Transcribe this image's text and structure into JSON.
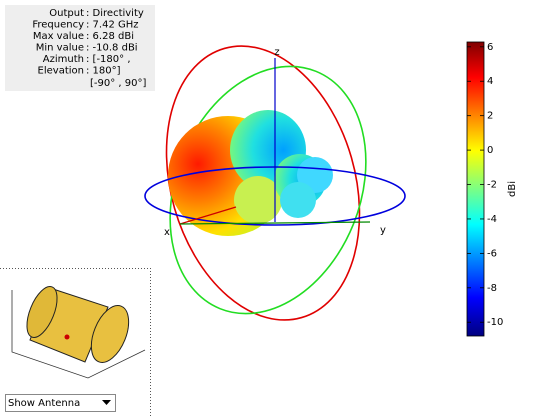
{
  "info": {
    "rows": [
      {
        "label": "Output",
        "value": ": Directivity"
      },
      {
        "label": "Frequency",
        "value": ": 7.42 GHz"
      },
      {
        "label": "Max value",
        "value": ": 6.28 dBi"
      },
      {
        "label": "Min value",
        "value": ": -10.8 dBi"
      },
      {
        "label": "Azimuth",
        "value": ": [-180° ,"
      },
      {
        "label": "Elevation",
        "value": ": 180°]"
      },
      {
        "value": "[-90° , 90°]"
      }
    ]
  },
  "axes": {
    "x": "x",
    "y": "y",
    "z": "z"
  },
  "colorbar": {
    "label": "dBi",
    "lim": [
      -10.8,
      6.28
    ],
    "ticks": [
      6,
      4,
      2,
      0,
      -2,
      -4,
      -6,
      -8,
      -10
    ]
  },
  "dropdown": {
    "label": "Show Antenna"
  }
}
